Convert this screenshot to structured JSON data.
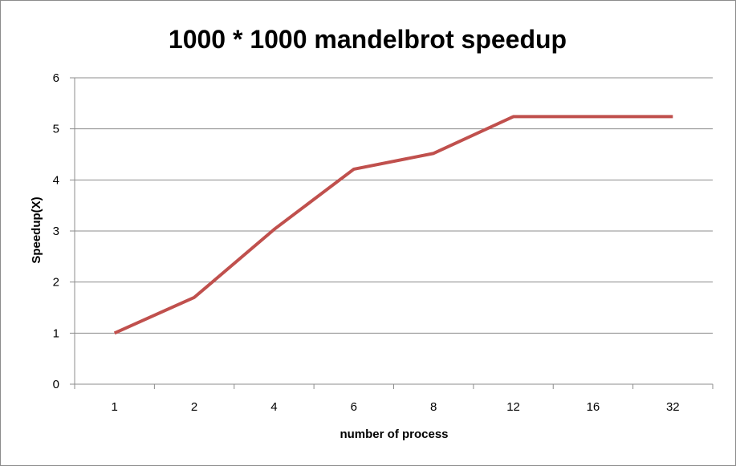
{
  "chart_data": {
    "type": "line",
    "title": "1000 * 1000 mandelbrot speedup",
    "xlabel": "number of process",
    "ylabel": "Speedup(X)",
    "categories": [
      "1",
      "2",
      "4",
      "6",
      "8",
      "12",
      "16",
      "32"
    ],
    "series": [
      {
        "values": [
          1.0,
          1.7,
          3.03,
          4.21,
          4.52,
          5.24,
          5.24,
          5.24
        ]
      }
    ],
    "ylim": [
      0,
      6
    ],
    "yticks": [
      "0",
      "1",
      "2",
      "3",
      "4",
      "5",
      "6"
    ],
    "grid": true,
    "legend": "none",
    "line_color": "#c0504d",
    "grid_color": "#8c8c8c"
  }
}
